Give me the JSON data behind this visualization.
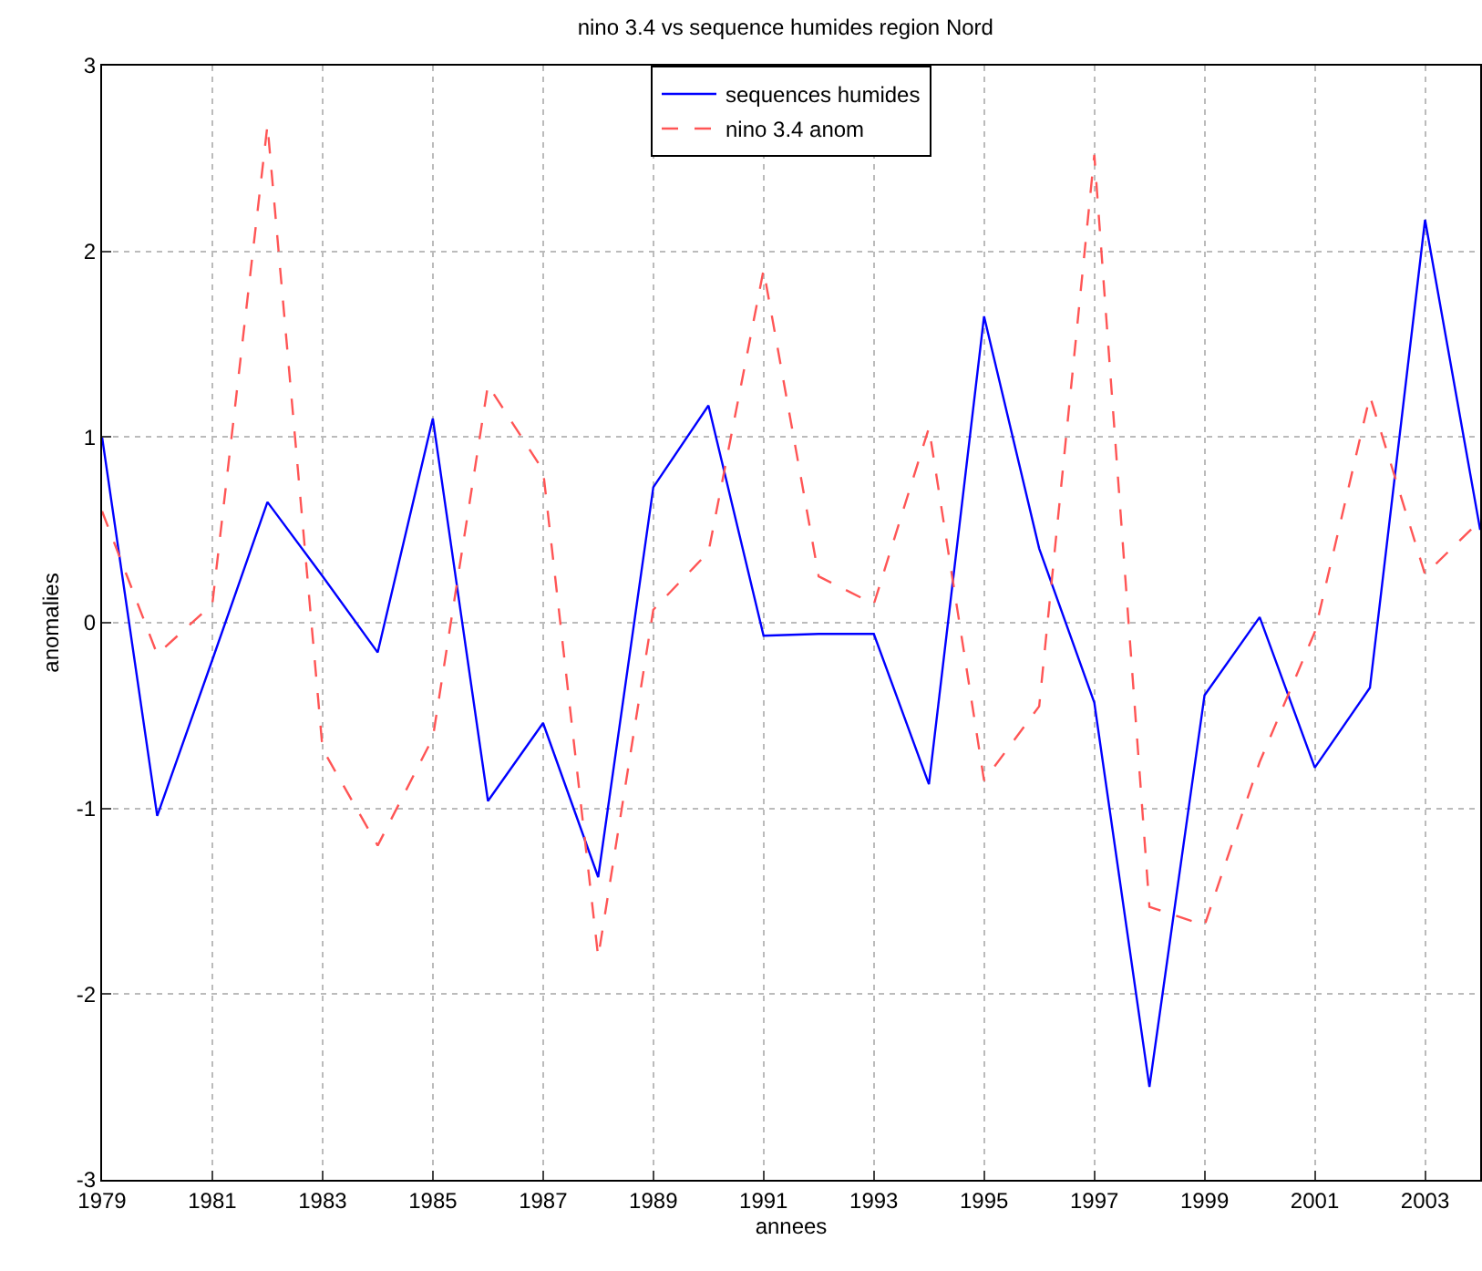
{
  "chart_data": {
    "type": "line",
    "title": "nino 3.4 vs sequence humides region Nord",
    "xlabel": "annees",
    "ylabel": "anomalies",
    "x": [
      1979,
      1980,
      1981,
      1982,
      1983,
      1984,
      1985,
      1986,
      1987,
      1988,
      1989,
      1990,
      1991,
      1992,
      1993,
      1994,
      1995,
      1996,
      1997,
      1998,
      1999,
      2000,
      2001,
      2002,
      2003,
      2004
    ],
    "series": [
      {
        "name": "sequences humides",
        "color": "#0000ff",
        "line_style": "solid",
        "values": [
          1.0,
          -1.04,
          -0.2,
          0.65,
          0.25,
          -0.16,
          1.1,
          -0.96,
          -0.54,
          -1.37,
          0.73,
          1.17,
          -0.07,
          -0.06,
          -0.06,
          -0.87,
          1.65,
          0.4,
          -0.43,
          -2.5,
          -0.39,
          0.03,
          -0.78,
          -0.35,
          2.17,
          0.5
        ]
      },
      {
        "name": "nino 3.4 anom",
        "color": "#ff5555",
        "line_style": "dashed",
        "values": [
          0.6,
          -0.17,
          0.1,
          2.68,
          -0.68,
          -1.2,
          -0.62,
          1.28,
          0.82,
          -1.8,
          0.07,
          0.38,
          1.9,
          0.25,
          0.1,
          1.05,
          -0.85,
          -0.45,
          2.52,
          -1.53,
          -1.63,
          -0.75,
          -0.05,
          1.22,
          0.26,
          0.55
        ]
      }
    ],
    "xlim": [
      1979,
      2004
    ],
    "xticks": [
      1979,
      1981,
      1983,
      1985,
      1987,
      1989,
      1991,
      1993,
      1995,
      1997,
      1999,
      2001,
      2003
    ],
    "ylim": [
      -3,
      3
    ],
    "yticks": [
      -3,
      -2,
      -1,
      0,
      1,
      2,
      3
    ],
    "grid": true,
    "legend": "top",
    "marker": "none"
  }
}
